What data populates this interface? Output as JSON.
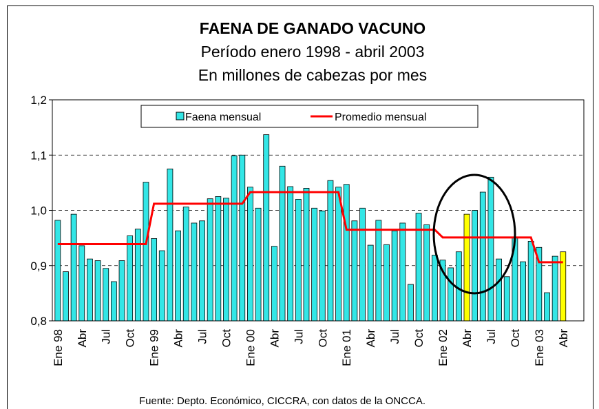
{
  "chart_data": {
    "type": "bar",
    "title": "FAENA DE GANADO VACUNO",
    "subtitle": [
      "Período enero 1998 - abril 2003",
      "En millones de cabezas por mes"
    ],
    "source": "Fuente: Depto. Económico, CICCRA, con datos de la ONCCA.",
    "categories": [
      "Ene 98",
      null,
      null,
      "Abr",
      null,
      null,
      "Jul",
      null,
      null,
      "Oct",
      null,
      null,
      "Ene 99",
      null,
      null,
      "Abr",
      null,
      null,
      "Jul",
      null,
      null,
      "Oct",
      null,
      null,
      "Ene 00",
      null,
      null,
      "Abr",
      null,
      null,
      "Jul",
      null,
      null,
      "Oct",
      null,
      null,
      "Ene 01",
      null,
      null,
      "Abr",
      null,
      null,
      "Jul",
      null,
      null,
      "Oct",
      null,
      null,
      "Ene 02",
      null,
      null,
      "Abr",
      null,
      null,
      "Jul",
      null,
      null,
      "Oct",
      null,
      null,
      "Ene 03",
      null,
      null,
      "Abr"
    ],
    "series": [
      {
        "name": "Faena mensual",
        "color": "#33e6e6",
        "colors": [
          "#33e6e6",
          "#33e6e6",
          "#33e6e6",
          "#33e6e6",
          "#33e6e6",
          "#33e6e6",
          "#33e6e6",
          "#33e6e6",
          "#33e6e6",
          "#33e6e6",
          "#33e6e6",
          "#33e6e6",
          "#33e6e6",
          "#33e6e6",
          "#33e6e6",
          "#33e6e6",
          "#33e6e6",
          "#33e6e6",
          "#33e6e6",
          "#33e6e6",
          "#33e6e6",
          "#33e6e6",
          "#33e6e6",
          "#33e6e6",
          "#33e6e6",
          "#33e6e6",
          "#33e6e6",
          "#33e6e6",
          "#33e6e6",
          "#33e6e6",
          "#33e6e6",
          "#33e6e6",
          "#33e6e6",
          "#33e6e6",
          "#33e6e6",
          "#33e6e6",
          "#33e6e6",
          "#33e6e6",
          "#33e6e6",
          "#33e6e6",
          "#33e6e6",
          "#33e6e6",
          "#33e6e6",
          "#33e6e6",
          "#33e6e6",
          "#33e6e6",
          "#33e6e6",
          "#33e6e6",
          "#33e6e6",
          "#33e6e6",
          "#33e6e6",
          "#ffff00",
          "#33e6e6",
          "#33e6e6",
          "#33e6e6",
          "#33e6e6",
          "#33e6e6",
          "#33e6e6",
          "#33e6e6",
          "#33e6e6",
          "#33e6e6",
          "#33e6e6",
          "#33e6e6",
          "#ffff00"
        ],
        "values": [
          0.982,
          0.889,
          0.993,
          0.936,
          0.912,
          0.909,
          0.895,
          0.871,
          0.909,
          0.954,
          0.966,
          1.051,
          0.949,
          0.927,
          1.075,
          0.963,
          1.006,
          0.977,
          0.981,
          1.021,
          1.025,
          1.022,
          1.099,
          1.1,
          1.042,
          1.004,
          1.137,
          0.935,
          1.08,
          1.043,
          1.02,
          1.04,
          1.004,
          0.999,
          1.054,
          1.042,
          1.047,
          0.981,
          1.004,
          0.937,
          0.982,
          0.938,
          0.963,
          0.977,
          0.866,
          0.995,
          0.974,
          0.919,
          0.91,
          0.896,
          0.925,
          0.993,
          1.0,
          1.033,
          1.06,
          0.912,
          0.88,
          0.95,
          0.907,
          0.944,
          0.933,
          0.851,
          0.917,
          0.925
        ]
      },
      {
        "name": "Promedio  mensual",
        "type": "line",
        "color": "#ff0000",
        "values": [
          0.939,
          0.939,
          0.939,
          0.939,
          0.939,
          0.939,
          0.939,
          0.939,
          0.939,
          0.939,
          0.939,
          0.939,
          1.012,
          1.012,
          1.012,
          1.012,
          1.012,
          1.012,
          1.012,
          1.012,
          1.012,
          1.012,
          1.012,
          1.012,
          1.033,
          1.033,
          1.033,
          1.033,
          1.033,
          1.033,
          1.033,
          1.033,
          1.033,
          1.033,
          1.033,
          1.033,
          0.965,
          0.965,
          0.965,
          0.965,
          0.965,
          0.965,
          0.965,
          0.965,
          0.965,
          0.965,
          0.965,
          0.965,
          0.951,
          0.951,
          0.951,
          0.951,
          0.951,
          0.951,
          0.951,
          0.951,
          0.951,
          0.951,
          0.951,
          0.951,
          0.906,
          0.906,
          0.906,
          0.906
        ]
      }
    ],
    "ylim": [
      0.8,
      1.2
    ],
    "yticks": [
      {
        "value": 0.8,
        "label": "0,8"
      },
      {
        "value": 0.9,
        "label": "0,9"
      },
      {
        "value": 1.0,
        "label": "1,0"
      },
      {
        "value": 1.1,
        "label": "1,1"
      },
      {
        "value": 1.2,
        "label": "1,2"
      }
    ],
    "grid": true,
    "legend": "top"
  }
}
